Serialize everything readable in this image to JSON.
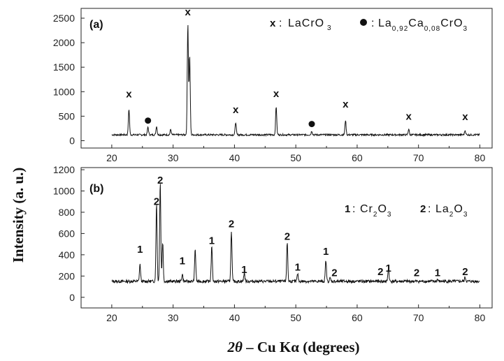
{
  "chart_data": [
    {
      "type": "line",
      "panel_label": "(a)",
      "xlim": [
        15,
        82
      ],
      "ylim": [
        -150,
        2700
      ],
      "xticks": [
        "20",
        "30",
        "40",
        "50",
        "60",
        "70",
        "80"
      ],
      "yticks": [
        "0",
        "500",
        "1000",
        "1500",
        "2000",
        "2500"
      ],
      "baseline": 120,
      "peaks": [
        {
          "x": 22.8,
          "y": 650
        },
        {
          "x": 25.9,
          "y": 280
        },
        {
          "x": 27.3,
          "y": 300
        },
        {
          "x": 29.6,
          "y": 230
        },
        {
          "x": 32.4,
          "y": 2400
        },
        {
          "x": 32.7,
          "y": 1750
        },
        {
          "x": 40.2,
          "y": 380
        },
        {
          "x": 46.8,
          "y": 700
        },
        {
          "x": 52.6,
          "y": 200
        },
        {
          "x": 58.1,
          "y": 420
        },
        {
          "x": 68.4,
          "y": 240
        },
        {
          "x": 77.6,
          "y": 210
        }
      ],
      "markers": [
        {
          "x": 22.8,
          "y": 880,
          "symbol": "x"
        },
        {
          "x": 25.9,
          "y": 410,
          "symbol": "dot"
        },
        {
          "x": 32.4,
          "y": 2560,
          "symbol": "x"
        },
        {
          "x": 40.2,
          "y": 560,
          "symbol": "x"
        },
        {
          "x": 46.8,
          "y": 890,
          "symbol": "x"
        },
        {
          "x": 52.6,
          "y": 340,
          "symbol": "dot"
        },
        {
          "x": 58.1,
          "y": 680,
          "symbol": "x"
        },
        {
          "x": 68.4,
          "y": 430,
          "symbol": "x"
        },
        {
          "x": 77.6,
          "y": 420,
          "symbol": "x"
        }
      ],
      "legend": [
        {
          "symbol": "x",
          "label": "LaCrO",
          "sub": "3"
        },
        {
          "symbol": "dot",
          "label": "La0,92Ca0,08CrO3"
        }
      ]
    },
    {
      "type": "line",
      "panel_label": "(b)",
      "xlim": [
        15,
        82
      ],
      "ylim": [
        -100,
        1220
      ],
      "xticks": [
        "20",
        "30",
        "40",
        "50",
        "60",
        "70",
        "80"
      ],
      "yticks": [
        "0",
        "200",
        "400",
        "600",
        "800",
        "1000",
        "1200"
      ],
      "baseline": 150,
      "peaks": [
        {
          "x": 24.6,
          "y": 310
        },
        {
          "x": 27.3,
          "y": 890
        },
        {
          "x": 27.9,
          "y": 1090
        },
        {
          "x": 28.3,
          "y": 520
        },
        {
          "x": 31.5,
          "y": 220
        },
        {
          "x": 33.6,
          "y": 460
        },
        {
          "x": 36.3,
          "y": 490
        },
        {
          "x": 39.5,
          "y": 630
        },
        {
          "x": 41.6,
          "y": 230
        },
        {
          "x": 48.6,
          "y": 520
        },
        {
          "x": 50.3,
          "y": 220
        },
        {
          "x": 54.9,
          "y": 350
        },
        {
          "x": 55.6,
          "y": 180
        },
        {
          "x": 63.8,
          "y": 150
        },
        {
          "x": 65.1,
          "y": 280
        },
        {
          "x": 69.7,
          "y": 150
        },
        {
          "x": 73.1,
          "y": 170
        },
        {
          "x": 77.6,
          "y": 190
        }
      ],
      "markers": [
        {
          "x": 24.6,
          "y": 420,
          "symbol": "1"
        },
        {
          "x": 27.3,
          "y": 870,
          "symbol": "2"
        },
        {
          "x": 27.9,
          "y": 1070,
          "symbol": "2"
        },
        {
          "x": 31.5,
          "y": 310,
          "symbol": "1"
        },
        {
          "x": 36.3,
          "y": 500,
          "symbol": "1"
        },
        {
          "x": 39.5,
          "y": 660,
          "symbol": "2"
        },
        {
          "x": 41.6,
          "y": 230,
          "symbol": "1"
        },
        {
          "x": 48.6,
          "y": 540,
          "symbol": "2"
        },
        {
          "x": 50.3,
          "y": 250,
          "symbol": "1"
        },
        {
          "x": 54.9,
          "y": 400,
          "symbol": "1"
        },
        {
          "x": 56.3,
          "y": 200,
          "symbol": "2"
        },
        {
          "x": 63.8,
          "y": 210,
          "symbol": "2"
        },
        {
          "x": 65.1,
          "y": 240,
          "symbol": "1"
        },
        {
          "x": 69.7,
          "y": 200,
          "symbol": "2"
        },
        {
          "x": 73.1,
          "y": 200,
          "symbol": "1"
        },
        {
          "x": 77.6,
          "y": 210,
          "symbol": "2"
        }
      ],
      "legend": [
        {
          "symbol": "1",
          "label": "Cr2O3"
        },
        {
          "symbol": "2",
          "label": "La2O3"
        }
      ]
    }
  ],
  "ylabel": "Intensity (a. u.)",
  "xlabel": "2θ – Cu Kα  (degrees)"
}
